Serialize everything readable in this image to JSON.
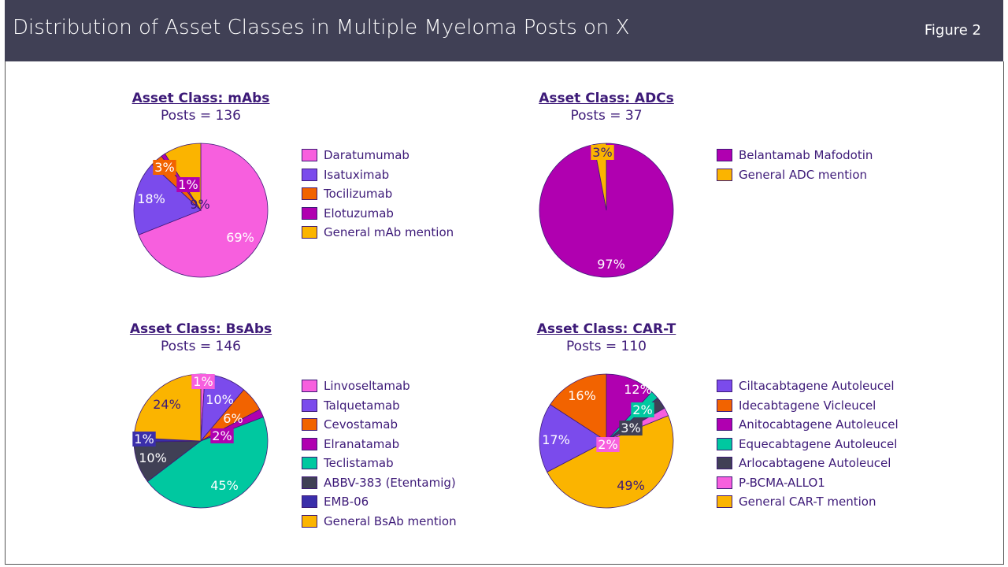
{
  "header": {
    "title": "Distribution of Asset Classes in Multiple Myeloma Posts on X",
    "figure": "Figure 2"
  },
  "chart_data": [
    {
      "type": "pie",
      "title": "Asset Class: mAbs",
      "subtitle": "Posts = 136",
      "labels": [
        "Daratumumab",
        "Isatuximab",
        "Tocilizumab",
        "Elotuzumab",
        "General mAb mention"
      ],
      "values": [
        69,
        18,
        3,
        1,
        9
      ],
      "colors": [
        "#f75fde",
        "#7b4bec",
        "#f26300",
        "#b000b0",
        "#fbb400"
      ],
      "legend": "right"
    },
    {
      "type": "pie",
      "title": "Asset Class: ADCs",
      "subtitle": "Posts = 37",
      "labels": [
        "Belantamab Mafodotin",
        "General ADC mention"
      ],
      "values": [
        97,
        3
      ],
      "colors": [
        "#b000b0",
        "#fbb400"
      ],
      "legend": "right"
    },
    {
      "type": "pie",
      "title": "Asset Class: BsAbs",
      "subtitle": "Posts = 146",
      "labels": [
        "Linvoseltamab",
        "Talquetamab",
        "Cevostamab",
        "Elranatamab",
        "Teclistamab",
        "ABBV-383 (Etentamig)",
        "EMB-06",
        "General BsAb mention"
      ],
      "values": [
        1,
        10,
        6,
        2,
        45,
        10,
        1,
        24
      ],
      "colors": [
        "#f75fde",
        "#7b4bec",
        "#f26300",
        "#b000b0",
        "#00c8a0",
        "#404055",
        "#3a2eaa",
        "#fbb400"
      ],
      "legend": "right"
    },
    {
      "type": "pie",
      "title": "Asset Class: CAR-T",
      "subtitle": "Posts = 110",
      "labels": [
        "Ciltacabtagene Autoleucel",
        "Idecabtagene Vicleucel",
        "Anitocabtagene Autoleucel",
        "Equecabtagene Autoleucel",
        "Arlocabtagene Autoleucel",
        "P-BCMA-ALLO1",
        "General CAR-T mention"
      ],
      "values": [
        17,
        16,
        12,
        2,
        3,
        2,
        49
      ],
      "draw_order": [
        2,
        3,
        4,
        5,
        6,
        0,
        1
      ],
      "colors": [
        "#7b4bec",
        "#f26300",
        "#b000b0",
        "#00c8a0",
        "#404055",
        "#f75fde",
        "#fbb400"
      ],
      "legend": "right"
    }
  ]
}
